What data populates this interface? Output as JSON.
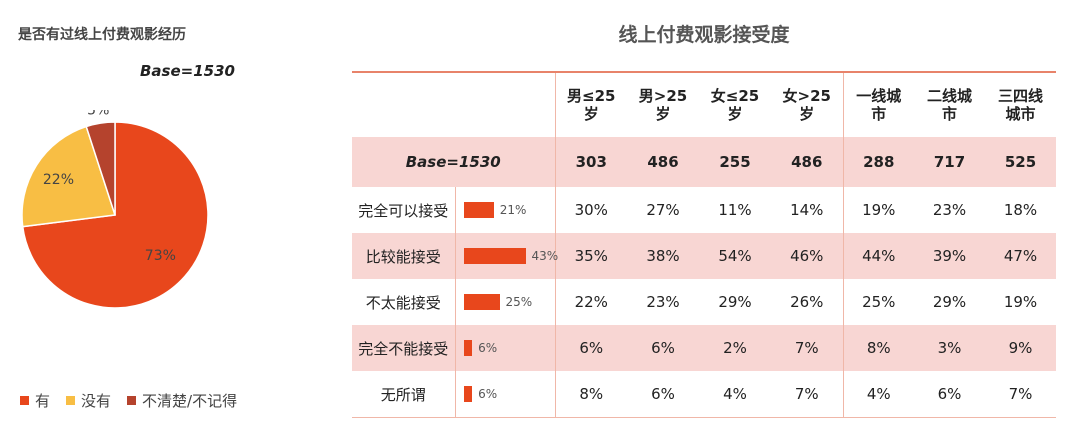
{
  "left": {
    "title": "是否有过线上付费观影经历",
    "base": "Base=1530"
  },
  "chart_data": [
    {
      "type": "pie",
      "title": "是否有过线上付费观影经历",
      "slices": [
        {
          "label": "有",
          "value": 73,
          "color": "#e8471c",
          "text": "73%"
        },
        {
          "label": "没有",
          "value": 22,
          "color": "#f8be44",
          "text": "22%"
        },
        {
          "label": "不清楚/不记得",
          "value": 5,
          "color": "#b5432d",
          "text": "5%"
        }
      ]
    },
    {
      "type": "table",
      "title": "线上付费观影接受度",
      "columns": [
        "男≤25岁",
        "男>25岁",
        "女≤25岁",
        "女>25岁",
        "一线城市",
        "二线城市",
        "三四线城市"
      ],
      "base_label": "Base=1530",
      "base_values": [
        "303",
        "486",
        "255",
        "486",
        "288",
        "717",
        "525"
      ],
      "rows": [
        {
          "label": "完全可以接受",
          "total": 21,
          "total_text": "21%",
          "values": [
            "30%",
            "27%",
            "11%",
            "14%",
            "19%",
            "23%",
            "18%"
          ],
          "highlight": [
            0,
            1
          ]
        },
        {
          "label": "比较能接受",
          "total": 43,
          "total_text": "43%",
          "values": [
            "35%",
            "38%",
            "54%",
            "46%",
            "44%",
            "39%",
            "47%"
          ],
          "highlight": []
        },
        {
          "label": "不太能接受",
          "total": 25,
          "total_text": "25%",
          "values": [
            "22%",
            "23%",
            "29%",
            "26%",
            "25%",
            "29%",
            "19%"
          ],
          "highlight": []
        },
        {
          "label": "完全不能接受",
          "total": 6,
          "total_text": "6%",
          "values": [
            "6%",
            "6%",
            "2%",
            "7%",
            "8%",
            "3%",
            "9%"
          ],
          "highlight": []
        },
        {
          "label": "无所谓",
          "total": 6,
          "total_text": "6%",
          "values": [
            "8%",
            "6%",
            "4%",
            "7%",
            "4%",
            "6%",
            "7%"
          ],
          "highlight": []
        }
      ]
    }
  ],
  "columns_lines": [
    [
      "男≤25",
      "岁"
    ],
    [
      "男>25",
      "岁"
    ],
    [
      "女≤25",
      "岁"
    ],
    [
      "女>25",
      "岁"
    ],
    [
      "一线城",
      "市"
    ],
    [
      "二线城",
      "市"
    ],
    [
      "三四线",
      "城市"
    ]
  ],
  "colors": {
    "accent": "#e8471c",
    "highlight_text": "#e0222a",
    "row_pink": "#f8d6d3"
  }
}
